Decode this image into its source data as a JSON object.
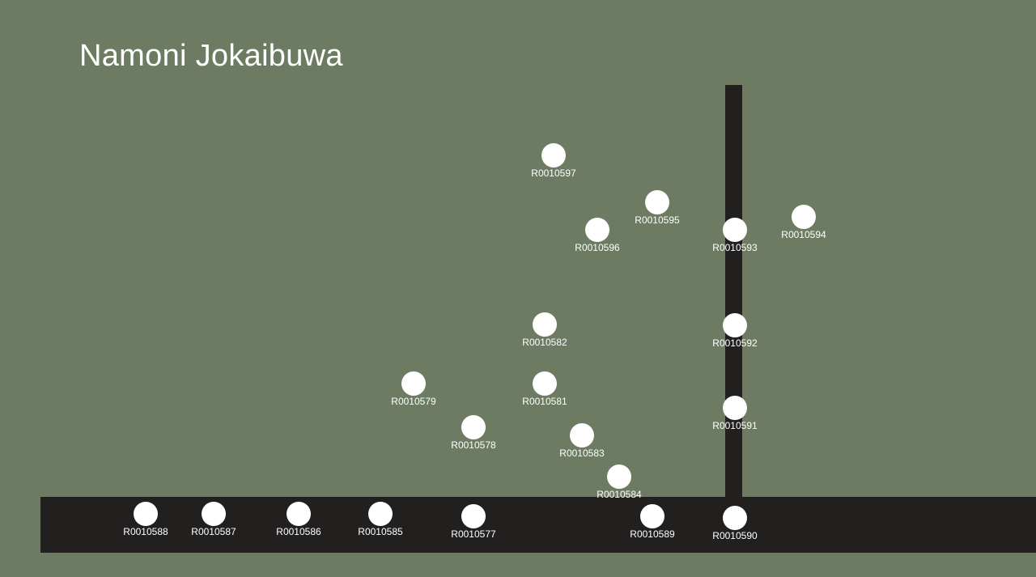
{
  "title": "Namoni Jokaibuwa",
  "colors": {
    "background": "#6d7b63",
    "road": "#221f1f",
    "point": "#ffffff",
    "text": "#ffffff"
  },
  "points": [
    {
      "id": "R0010597"
    },
    {
      "id": "R0010595"
    },
    {
      "id": "R0010596"
    },
    {
      "id": "R0010593"
    },
    {
      "id": "R0010594"
    },
    {
      "id": "R0010582"
    },
    {
      "id": "R0010592"
    },
    {
      "id": "R0010579"
    },
    {
      "id": "R0010581"
    },
    {
      "id": "R0010591"
    },
    {
      "id": "R0010578"
    },
    {
      "id": "R0010583"
    },
    {
      "id": "R0010584"
    },
    {
      "id": "R0010588"
    },
    {
      "id": "R0010587"
    },
    {
      "id": "R0010586"
    },
    {
      "id": "R0010585"
    },
    {
      "id": "R0010577"
    },
    {
      "id": "R0010589"
    },
    {
      "id": "R0010590"
    }
  ]
}
